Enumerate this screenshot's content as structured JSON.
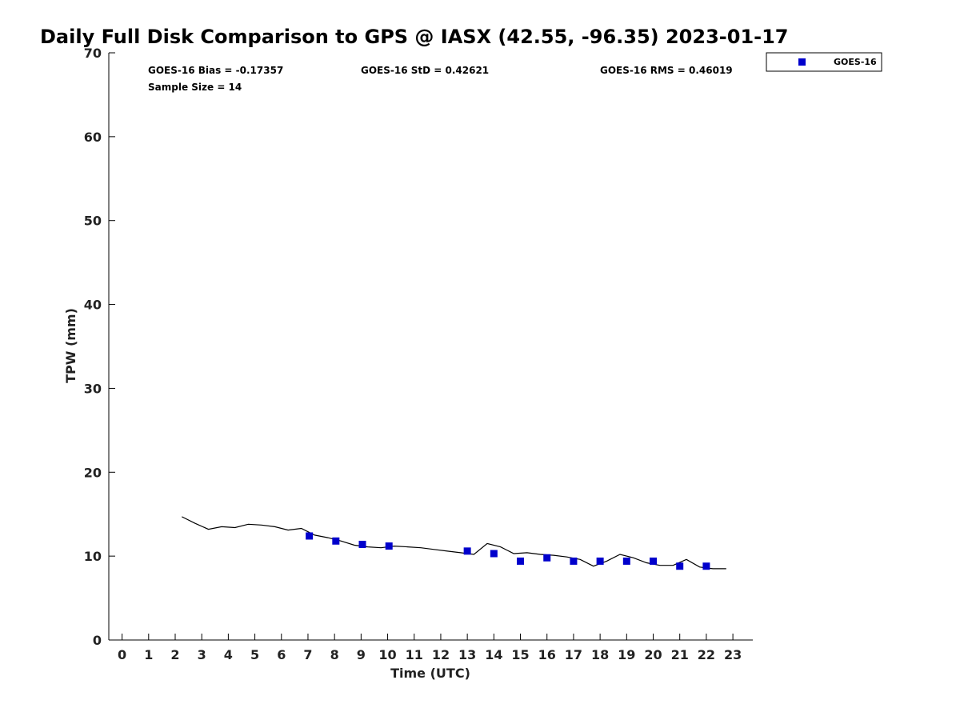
{
  "chart_data": {
    "type": "scatter",
    "title": "Daily Full Disk Comparison to GPS @ IASX (42.55, -96.35) 2023-01-17",
    "xlabel": "Time (UTC)",
    "ylabel": "TPW (mm)",
    "xlim": [
      -0.5,
      23.75
    ],
    "ylim": [
      0,
      70
    ],
    "x_ticks": [
      0,
      1,
      2,
      3,
      4,
      5,
      6,
      7,
      8,
      9,
      10,
      11,
      12,
      13,
      14,
      15,
      16,
      17,
      18,
      19,
      20,
      21,
      22,
      23
    ],
    "y_ticks": [
      0,
      10,
      20,
      30,
      40,
      50,
      60,
      70
    ],
    "grid": false,
    "legend_position": "top-right, outside plot",
    "stats": {
      "bias": "GOES-16 Bias = -0.17357",
      "std": "GOES-16 StD = 0.42621",
      "rms": "GOES-16 RMS = 0.46019",
      "sample_size": "Sample Size = 14"
    },
    "series": [
      {
        "name": "GOES-16",
        "kind": "scatter",
        "marker": "square",
        "color": "#0000cc",
        "x": [
          7.05,
          8.05,
          9.05,
          10.05,
          13.0,
          14.0,
          15.0,
          16.0,
          17.0,
          18.0,
          19.0,
          20.0,
          21.0,
          22.0
        ],
        "y": [
          12.4,
          11.8,
          11.4,
          11.2,
          10.6,
          10.3,
          9.4,
          9.8,
          9.4,
          9.4,
          9.4,
          9.4,
          8.8,
          8.8
        ]
      },
      {
        "kind": "line",
        "color": "#000000",
        "x": [
          2.25,
          2.75,
          3.25,
          3.75,
          4.25,
          4.75,
          5.25,
          5.75,
          6.25,
          6.75,
          7.0,
          7.25,
          7.75,
          8.25,
          8.75,
          9.25,
          9.75,
          10.25,
          10.75,
          11.25,
          11.75,
          12.25,
          12.75,
          13.25,
          13.75,
          14.25,
          14.75,
          15.25,
          15.75,
          16.25,
          16.75,
          17.25,
          17.75,
          18.25,
          18.75,
          19.25,
          19.75,
          20.25,
          20.75,
          21.25,
          21.75,
          22.25,
          22.75
        ],
        "y": [
          14.7,
          13.9,
          13.2,
          13.5,
          13.4,
          13.8,
          13.7,
          13.5,
          13.1,
          13.3,
          12.9,
          12.5,
          12.2,
          11.8,
          11.3,
          11.1,
          11.0,
          11.2,
          11.1,
          11.0,
          10.8,
          10.6,
          10.4,
          10.2,
          11.5,
          11.1,
          10.3,
          10.4,
          10.2,
          10.1,
          9.9,
          9.6,
          8.8,
          9.4,
          10.2,
          9.8,
          9.2,
          8.9,
          8.9,
          9.6,
          8.7,
          8.5,
          8.5
        ]
      }
    ]
  }
}
